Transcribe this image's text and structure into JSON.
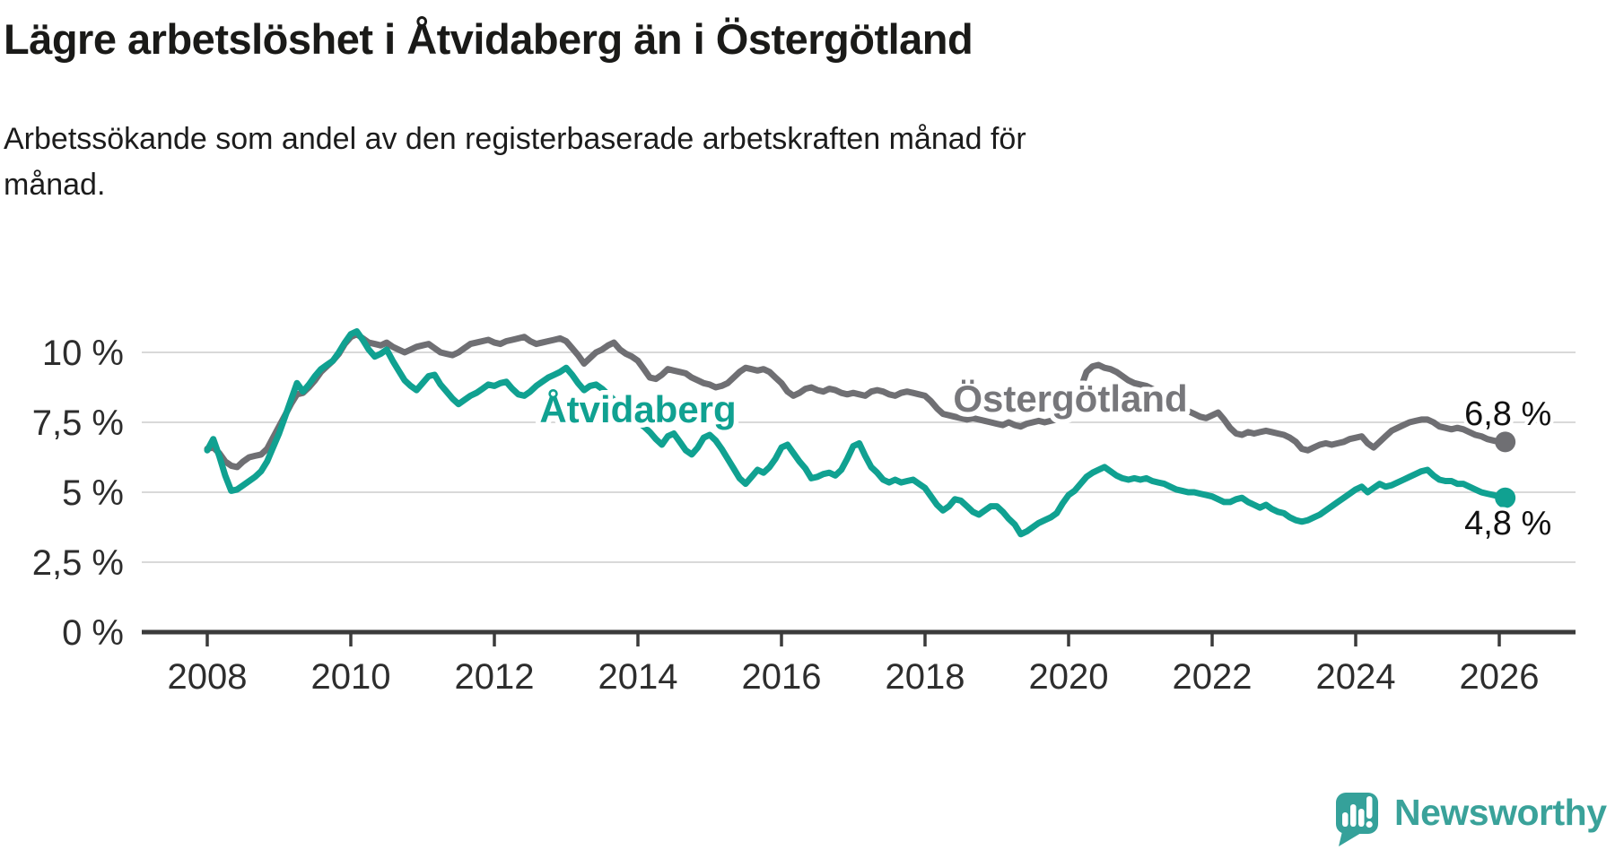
{
  "header": {
    "title": "Lägre arbetslöshet i Åtvidaberg än i Östergötland",
    "subtitle_lines": [
      "Arbetssökande som andel av den registerbaserade arbetskraften månad för",
      "månad."
    ]
  },
  "chart_data": {
    "type": "line",
    "x_unit": "year",
    "y_unit": "percent",
    "x_start_year": 2008,
    "x_step_months": 1,
    "x_end_label": "2026-02",
    "ylim": [
      0,
      11.2
    ],
    "grid": true,
    "x_ticks": [
      2008,
      2010,
      2012,
      2014,
      2016,
      2018,
      2020,
      2022,
      2024,
      2026
    ],
    "y_ticks": [
      {
        "value": 10,
        "label": "10 %"
      },
      {
        "value": 7.5,
        "label": "7,5 %"
      },
      {
        "value": 5,
        "label": "5 %"
      },
      {
        "value": 2.5,
        "label": "2,5 %"
      },
      {
        "value": 0,
        "label": "0 %"
      }
    ],
    "series": [
      {
        "name": "Östergötland",
        "color": "#6f6f73",
        "label_color": "#77777b",
        "end_label": "6,8 %",
        "end_value": 6.8,
        "values": [
          6.55,
          6.6,
          6.4,
          6.1,
          5.95,
          5.9,
          6.1,
          6.25,
          6.3,
          6.35,
          6.55,
          6.95,
          7.35,
          7.75,
          8.15,
          8.5,
          8.55,
          8.75,
          9.0,
          9.3,
          9.5,
          9.7,
          9.95,
          10.3,
          10.55,
          10.65,
          10.5,
          10.35,
          10.3,
          10.25,
          10.35,
          10.2,
          10.1,
          10.0,
          10.1,
          10.2,
          10.25,
          10.3,
          10.15,
          10.0,
          9.95,
          9.9,
          10.0,
          10.15,
          10.3,
          10.35,
          10.4,
          10.45,
          10.35,
          10.3,
          10.4,
          10.45,
          10.5,
          10.55,
          10.4,
          10.3,
          10.35,
          10.4,
          10.45,
          10.5,
          10.4,
          10.15,
          9.9,
          9.6,
          9.8,
          10.0,
          10.1,
          10.25,
          10.35,
          10.1,
          9.95,
          9.85,
          9.7,
          9.4,
          9.1,
          9.05,
          9.2,
          9.4,
          9.35,
          9.3,
          9.25,
          9.1,
          9.0,
          8.9,
          8.85,
          8.75,
          8.8,
          8.9,
          9.1,
          9.3,
          9.45,
          9.4,
          9.35,
          9.4,
          9.3,
          9.1,
          8.9,
          8.6,
          8.45,
          8.55,
          8.7,
          8.75,
          8.65,
          8.6,
          8.7,
          8.65,
          8.55,
          8.5,
          8.55,
          8.5,
          8.45,
          8.6,
          8.65,
          8.6,
          8.5,
          8.45,
          8.55,
          8.6,
          8.55,
          8.5,
          8.45,
          8.25,
          8.0,
          7.8,
          7.75,
          7.7,
          7.65,
          7.6,
          7.65,
          7.6,
          7.55,
          7.5,
          7.45,
          7.4,
          7.5,
          7.4,
          7.35,
          7.45,
          7.5,
          7.55,
          7.5,
          7.55,
          7.6,
          7.7,
          7.9,
          8.1,
          8.7,
          9.3,
          9.5,
          9.55,
          9.45,
          9.4,
          9.3,
          9.15,
          9.0,
          8.9,
          8.85,
          8.8,
          8.7,
          8.6,
          8.5,
          8.4,
          8.2,
          8.05,
          7.9,
          7.8,
          7.7,
          7.65,
          7.75,
          7.85,
          7.6,
          7.3,
          7.1,
          7.05,
          7.15,
          7.1,
          7.15,
          7.2,
          7.15,
          7.1,
          7.05,
          6.95,
          6.8,
          6.55,
          6.5,
          6.6,
          6.7,
          6.75,
          6.7,
          6.75,
          6.8,
          6.9,
          6.95,
          7.0,
          6.75,
          6.6,
          6.8,
          7.0,
          7.2,
          7.3,
          7.4,
          7.5,
          7.55,
          7.6,
          7.6,
          7.5,
          7.35,
          7.3,
          7.25,
          7.3,
          7.25,
          7.15,
          7.05,
          7.0,
          6.9,
          6.85,
          6.8,
          6.8
        ]
      },
      {
        "name": "Åtvidaberg",
        "color": "#10a191",
        "label_color": "#10a191",
        "end_label": "4,8 %",
        "end_value": 4.8,
        "values": [
          6.5,
          6.9,
          6.3,
          5.6,
          5.05,
          5.1,
          5.25,
          5.4,
          5.55,
          5.75,
          6.1,
          6.6,
          7.1,
          7.7,
          8.3,
          8.9,
          8.6,
          8.85,
          9.15,
          9.4,
          9.55,
          9.7,
          10.0,
          10.35,
          10.65,
          10.75,
          10.45,
          10.1,
          9.85,
          9.95,
          10.1,
          9.7,
          9.35,
          9.0,
          8.8,
          8.65,
          8.9,
          9.15,
          9.2,
          8.85,
          8.6,
          8.35,
          8.15,
          8.3,
          8.45,
          8.55,
          8.7,
          8.85,
          8.8,
          8.9,
          8.95,
          8.7,
          8.5,
          8.45,
          8.6,
          8.8,
          8.95,
          9.1,
          9.2,
          9.3,
          9.45,
          9.2,
          8.9,
          8.65,
          8.8,
          8.85,
          8.7,
          8.5,
          8.3,
          8.1,
          7.9,
          7.7,
          7.5,
          7.35,
          7.15,
          6.9,
          6.7,
          7.0,
          7.1,
          6.8,
          6.5,
          6.35,
          6.6,
          6.95,
          7.05,
          6.85,
          6.55,
          6.2,
          5.85,
          5.5,
          5.3,
          5.55,
          5.8,
          5.7,
          5.9,
          6.2,
          6.6,
          6.7,
          6.4,
          6.1,
          5.85,
          5.5,
          5.55,
          5.65,
          5.7,
          5.6,
          5.8,
          6.2,
          6.65,
          6.75,
          6.3,
          5.9,
          5.7,
          5.45,
          5.35,
          5.45,
          5.35,
          5.4,
          5.45,
          5.3,
          5.15,
          4.85,
          4.55,
          4.35,
          4.5,
          4.75,
          4.7,
          4.5,
          4.3,
          4.2,
          4.35,
          4.5,
          4.5,
          4.3,
          4.05,
          3.85,
          3.5,
          3.6,
          3.75,
          3.9,
          4.0,
          4.1,
          4.25,
          4.6,
          4.9,
          5.05,
          5.3,
          5.55,
          5.7,
          5.8,
          5.9,
          5.75,
          5.6,
          5.5,
          5.45,
          5.5,
          5.45,
          5.5,
          5.4,
          5.35,
          5.3,
          5.2,
          5.1,
          5.05,
          5.0,
          5.0,
          4.95,
          4.9,
          4.85,
          4.75,
          4.65,
          4.65,
          4.75,
          4.8,
          4.65,
          4.55,
          4.45,
          4.55,
          4.4,
          4.3,
          4.25,
          4.1,
          4.0,
          3.95,
          4.0,
          4.1,
          4.2,
          4.35,
          4.5,
          4.65,
          4.8,
          4.95,
          5.1,
          5.2,
          5.0,
          5.15,
          5.3,
          5.2,
          5.25,
          5.35,
          5.45,
          5.55,
          5.65,
          5.75,
          5.8,
          5.6,
          5.45,
          5.4,
          5.4,
          5.3,
          5.3,
          5.2,
          5.1,
          5.0,
          4.95,
          4.9,
          4.85,
          4.8
        ]
      }
    ]
  },
  "branding": {
    "logo_text": "Newsworthy",
    "logo_color": "#3aa29a",
    "logo_icon": "newsworthy-bar-chart-bubble-icon"
  },
  "colors": {
    "background": "#ffffff",
    "gridline": "#d9d9d9",
    "axis": "#3b3b3b",
    "tick_label": "#2d2d2d",
    "value_label": "#111111"
  }
}
